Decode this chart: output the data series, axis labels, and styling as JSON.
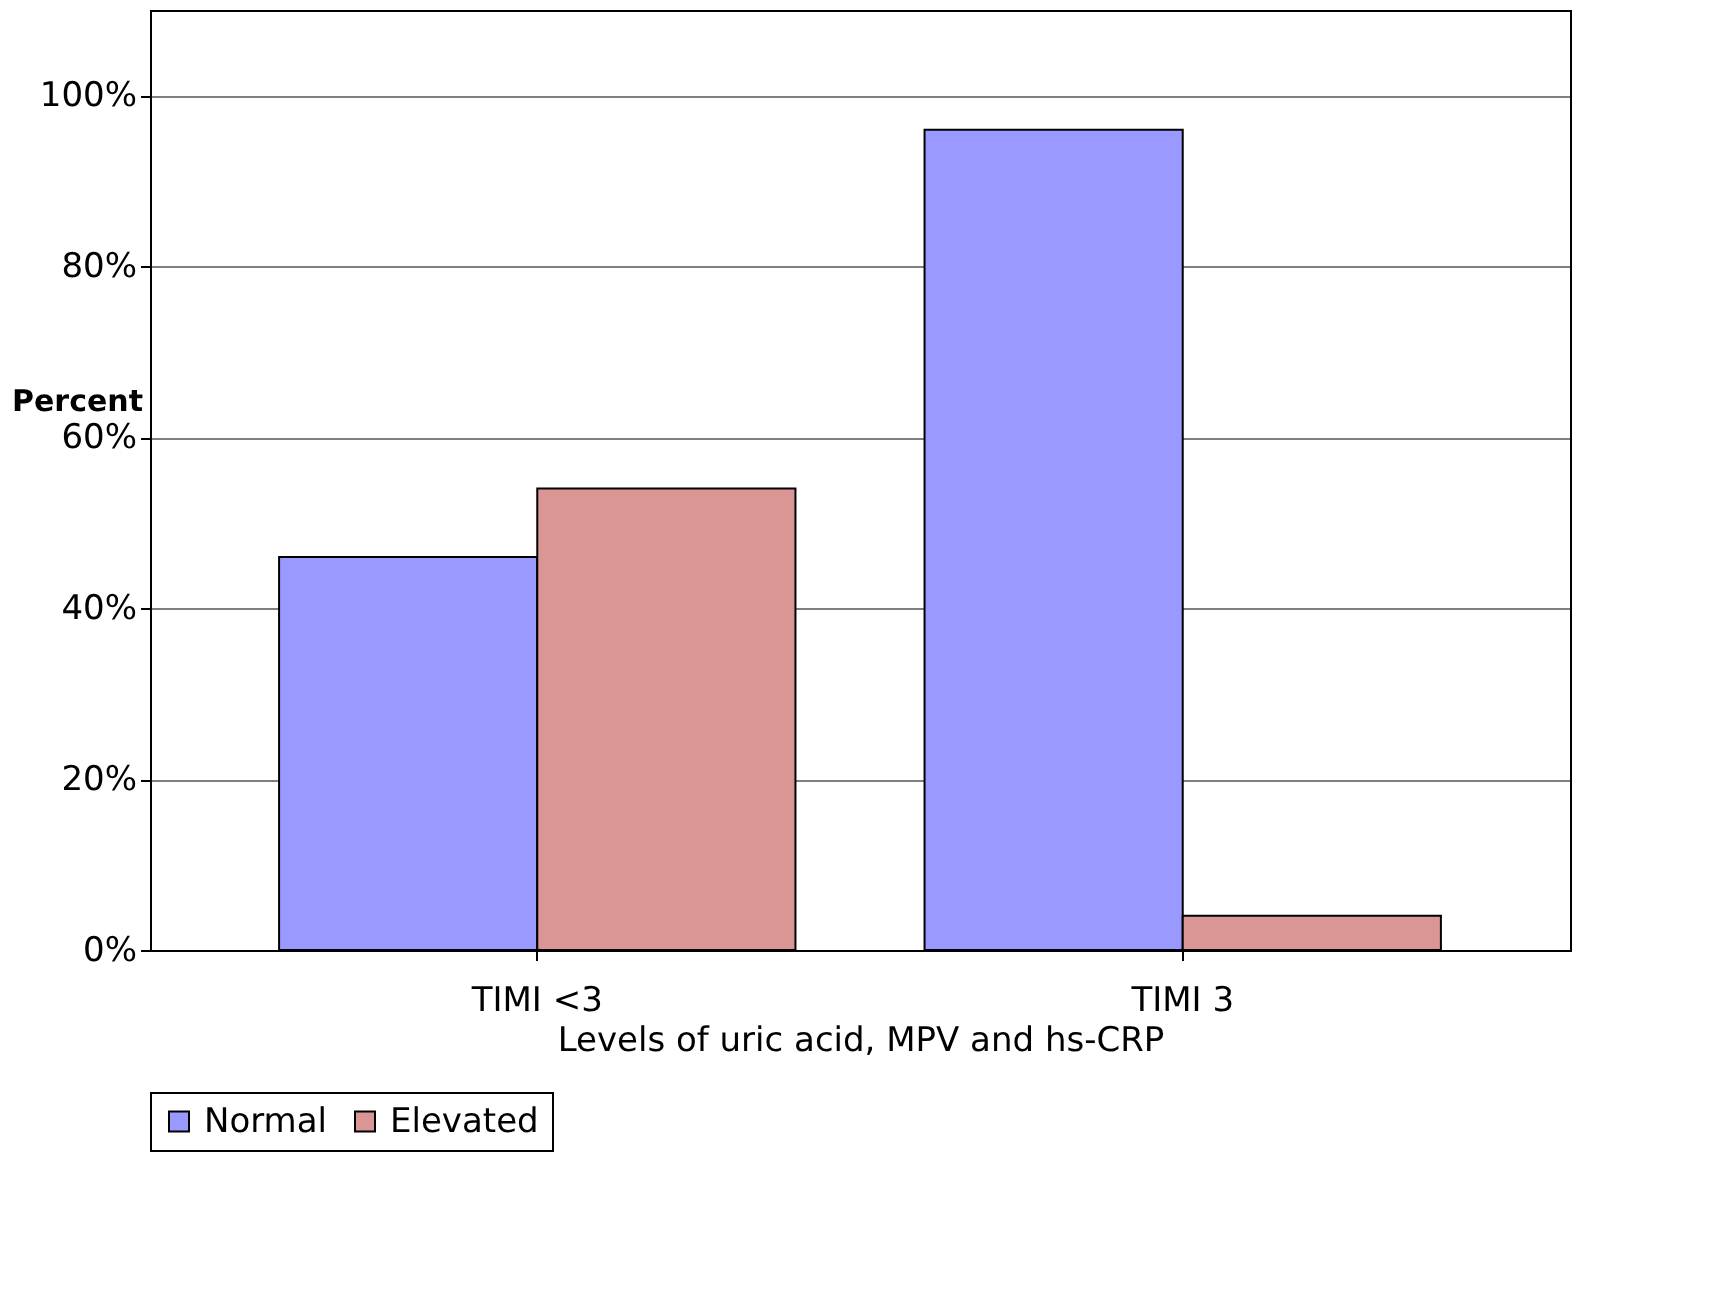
{
  "chart_data": {
    "type": "bar",
    "xlabel": "Levels of uric acid, MPV and hs-CRP",
    "ylabel": "Percent",
    "categories": [
      "TIMI <3",
      "TIMI 3"
    ],
    "series": [
      {
        "name": "Normal",
        "color": "#9999ff",
        "values": [
          46,
          96
        ]
      },
      {
        "name": "Elevated",
        "color": "#d99694",
        "values": [
          54,
          4
        ]
      }
    ],
    "ylim": [
      0,
      110
    ],
    "yticks": [
      {
        "value": 0,
        "label": "0%"
      },
      {
        "value": 20,
        "label": "20%"
      },
      {
        "value": 40,
        "label": "40%"
      },
      {
        "value": 60,
        "label": "60%"
      },
      {
        "value": 80,
        "label": "80%"
      },
      {
        "value": 100,
        "label": "100%"
      }
    ],
    "grid": "y",
    "legend": "bottom"
  }
}
